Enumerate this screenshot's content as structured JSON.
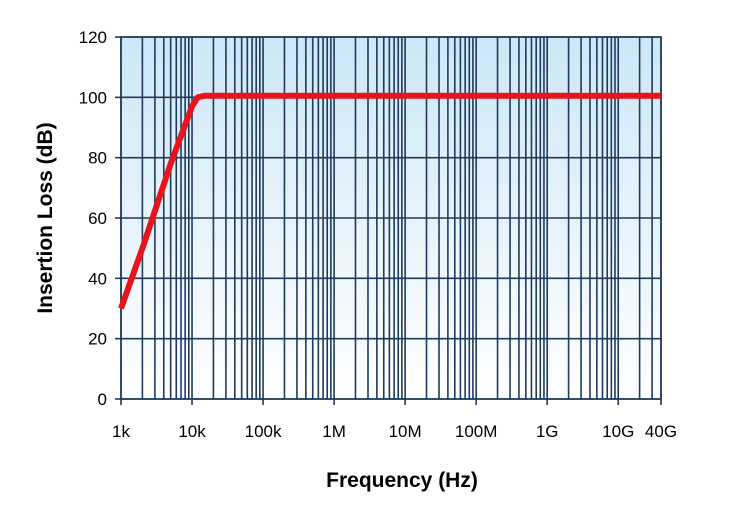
{
  "chart_data": {
    "type": "line",
    "title": "",
    "xlabel": "Frequency (Hz)",
    "ylabel": "Insertion Loss (dB)",
    "x_scale": "log",
    "xlim": [
      1000,
      40000000000
    ],
    "ylim": [
      0,
      120
    ],
    "x_tick_values": [
      1000,
      10000,
      100000,
      1000000,
      10000000,
      100000000,
      1000000000,
      10000000000,
      40000000000
    ],
    "x_tick_labels": [
      "1k",
      "10k",
      "100k",
      "1M",
      "10M",
      "100M",
      "1G",
      "10G",
      "40G"
    ],
    "y_ticks": [
      0,
      20,
      40,
      60,
      80,
      100,
      120
    ],
    "grid": true,
    "legend": "none",
    "series": [
      {
        "color": "#e8141b",
        "x": [
          1000,
          2000,
          5000,
          10000,
          12000,
          15000,
          20000,
          40000000000
        ],
        "y": [
          30,
          50,
          78,
          97,
          100,
          100.5,
          100.5,
          100.5
        ]
      }
    ],
    "colors": {
      "plot_bg_top": "#cde7f7",
      "plot_bg_bottom": "#ffffff",
      "grid": "#1f3a5c",
      "line": "#e8141b"
    }
  }
}
